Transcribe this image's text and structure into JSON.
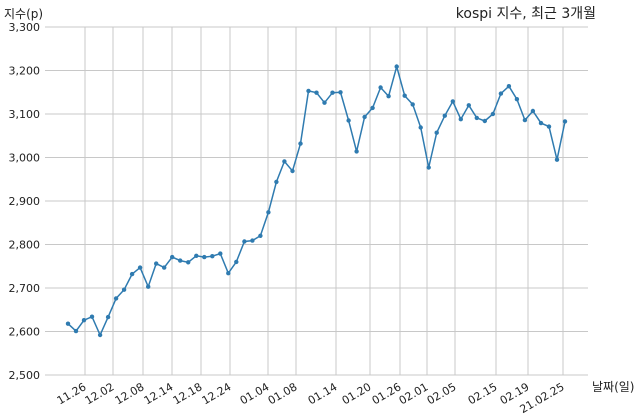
{
  "chart_data": {
    "type": "line",
    "title": "kospi 지수, 최근 3개월",
    "xlabel": "날짜(일)",
    "ylabel": "지수(p)",
    "ylim": [
      2500,
      3300
    ],
    "y_ticks": [
      "2,500",
      "2,600",
      "2,700",
      "2,800",
      "2,900",
      "3,000",
      "3,100",
      "3,200",
      "3,300"
    ],
    "grid": true,
    "x_tick_labels": [
      "11.26",
      "12.02",
      "12.08",
      "12.14",
      "12.18",
      "12.24",
      "01.04",
      "01.08",
      "01.14",
      "01.20",
      "01.26",
      "02.01",
      "02.05",
      "02.15",
      "02.19",
      "21.02.25"
    ],
    "series": [
      {
        "color": "#2f7bb0",
        "values": [
          2618,
          2601,
          2626,
          2634,
          2592,
          2633,
          2676,
          2696,
          2732,
          2747,
          2703,
          2756,
          2747,
          2771,
          2763,
          2759,
          2774,
          2771,
          2773,
          2779,
          2734,
          2760,
          2807,
          2809,
          2820,
          2874,
          2944,
          2991,
          2969,
          3032,
          3153,
          3149,
          3126,
          3149,
          3150,
          3085,
          3014,
          3093,
          3114,
          3161,
          3141,
          3209,
          3142,
          3122,
          3069,
          2977,
          3057,
          3096,
          3129,
          3088,
          3120,
          3091,
          3084,
          3100,
          3147,
          3164,
          3134,
          3086,
          3107,
          3079,
          3071,
          2995,
          3083
        ]
      }
    ]
  }
}
